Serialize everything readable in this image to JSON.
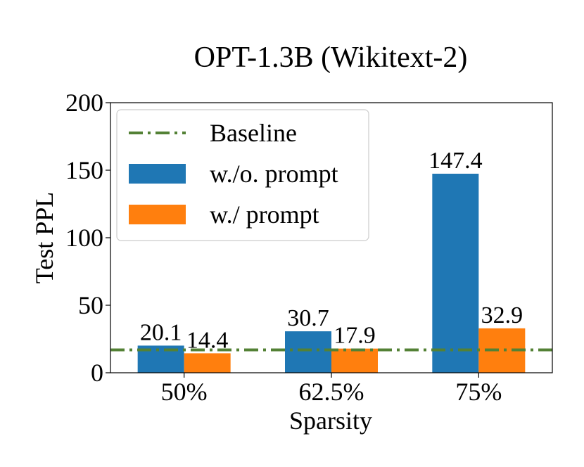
{
  "chart_data": {
    "type": "bar",
    "title": "OPT-1.3B (Wikitext-2)",
    "xlabel": "Sparsity",
    "ylabel": "Test PPL",
    "categories": [
      "50%",
      "62.5%",
      "75%"
    ],
    "ylim": [
      0,
      200
    ],
    "yticks": [
      "0",
      "50",
      "100",
      "150",
      "200"
    ],
    "grid": false,
    "legend_position": "top-left",
    "baseline": {
      "name": "Baseline",
      "value": 16.9,
      "color": "#538135",
      "style": "dash-dot"
    },
    "series": [
      {
        "name": "w./o. prompt",
        "values": [
          20.1,
          30.7,
          147.4
        ],
        "labels": [
          "20.1",
          "30.7",
          "147.4"
        ],
        "color": "#1f77b4"
      },
      {
        "name": "w./ prompt",
        "values": [
          14.4,
          17.9,
          32.9
        ],
        "labels": [
          "14.4",
          "17.9",
          "32.9"
        ],
        "color": "#ff7f0e"
      }
    ]
  }
}
